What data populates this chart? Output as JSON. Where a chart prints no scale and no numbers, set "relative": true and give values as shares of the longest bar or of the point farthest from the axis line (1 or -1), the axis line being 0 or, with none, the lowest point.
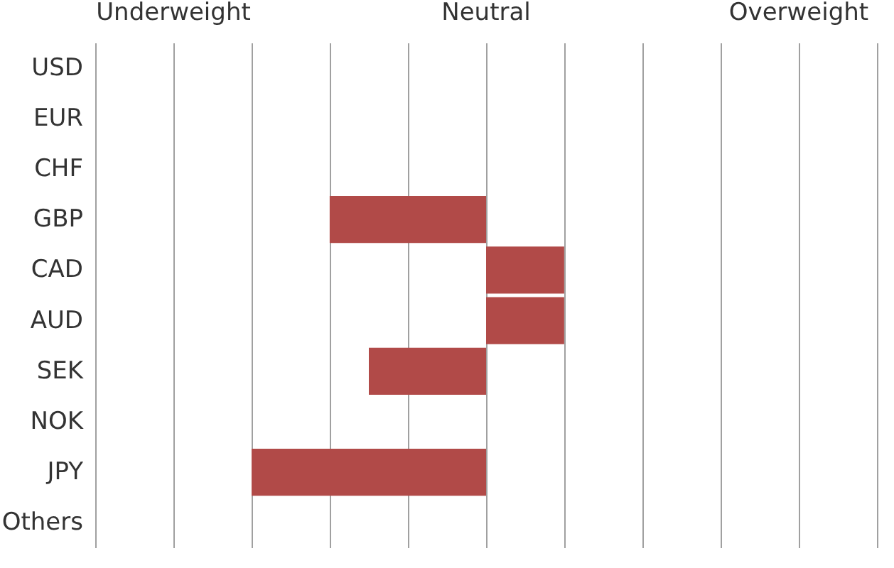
{
  "chart_data": {
    "type": "bar",
    "orientation": "horizontal",
    "relative": true,
    "categories": [
      "USD",
      "EUR",
      "CHF",
      "GBP",
      "CAD",
      "AUD",
      "SEK",
      "NOK",
      "JPY",
      "Others"
    ],
    "values": [
      null,
      null,
      null,
      -0.667,
      0.333,
      0.333,
      -0.5,
      null,
      -1,
      null
    ],
    "color": "#b14a48",
    "annotations": [
      "Underweight",
      "Neutral",
      "Overweight"
    ],
    "grid": "x"
  }
}
